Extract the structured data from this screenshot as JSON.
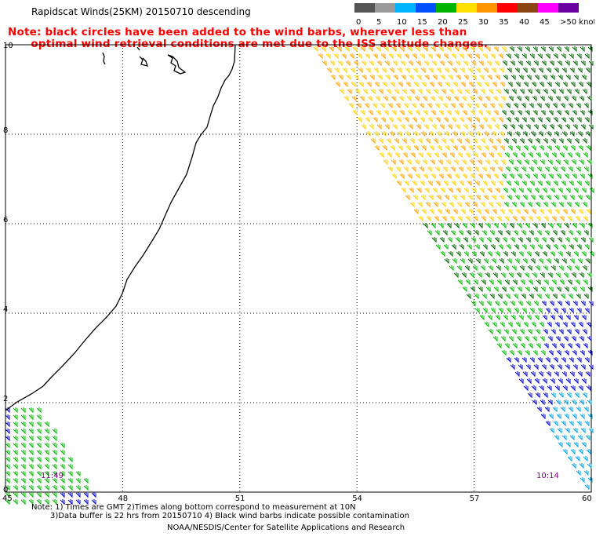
{
  "title": "Rapidscat Winds(25KM) 20150710 descending",
  "note": {
    "line1": "Note: black circles have been added to the wind barbs, wherever less than",
    "line2": "      optimal wind retrieval conditions are met due to the ISS attitude changes."
  },
  "colorbar": {
    "labels": [
      "0",
      "5",
      "10",
      "15",
      "20",
      "25",
      "30",
      "35",
      "40",
      "45",
      ">50 knots"
    ],
    "colors": [
      "#555555",
      "#9a9a9a",
      "#00b4ff",
      "#0050ff",
      "#00b400",
      "#ffe000",
      "#ff9600",
      "#ff0000",
      "#8b4513",
      "#ff00ff",
      "#6a00a0"
    ]
  },
  "axes": {
    "lon_ticks": [
      "45",
      "48",
      "51",
      "54",
      "57",
      "60"
    ],
    "lat_ticks": [
      "0",
      "2",
      "4",
      "6",
      "8",
      "10"
    ],
    "lon_range": [
      45,
      60
    ],
    "lat_range": [
      0,
      10
    ]
  },
  "times": {
    "left": "11:49",
    "right": "10:14"
  },
  "footer": {
    "line1": "Note: 1) Times are GMT 2)Times along bottom correspond to measurement at 10N",
    "line2": "3)Data buffer is 22 hrs from 20150710 4) Black wind barbs indicate possible contamination",
    "credit": "NOAA/NESDIS/Center for Satellite Applications and Research"
  },
  "swath_colors": {
    "green": "#00b400",
    "dark_green": "#006400",
    "yellow": "#ffd200",
    "orange": "#ffa500",
    "blue": "#0000c8",
    "cyan": "#00a0e0",
    "coast": "#000000",
    "time_label": "#800080"
  }
}
